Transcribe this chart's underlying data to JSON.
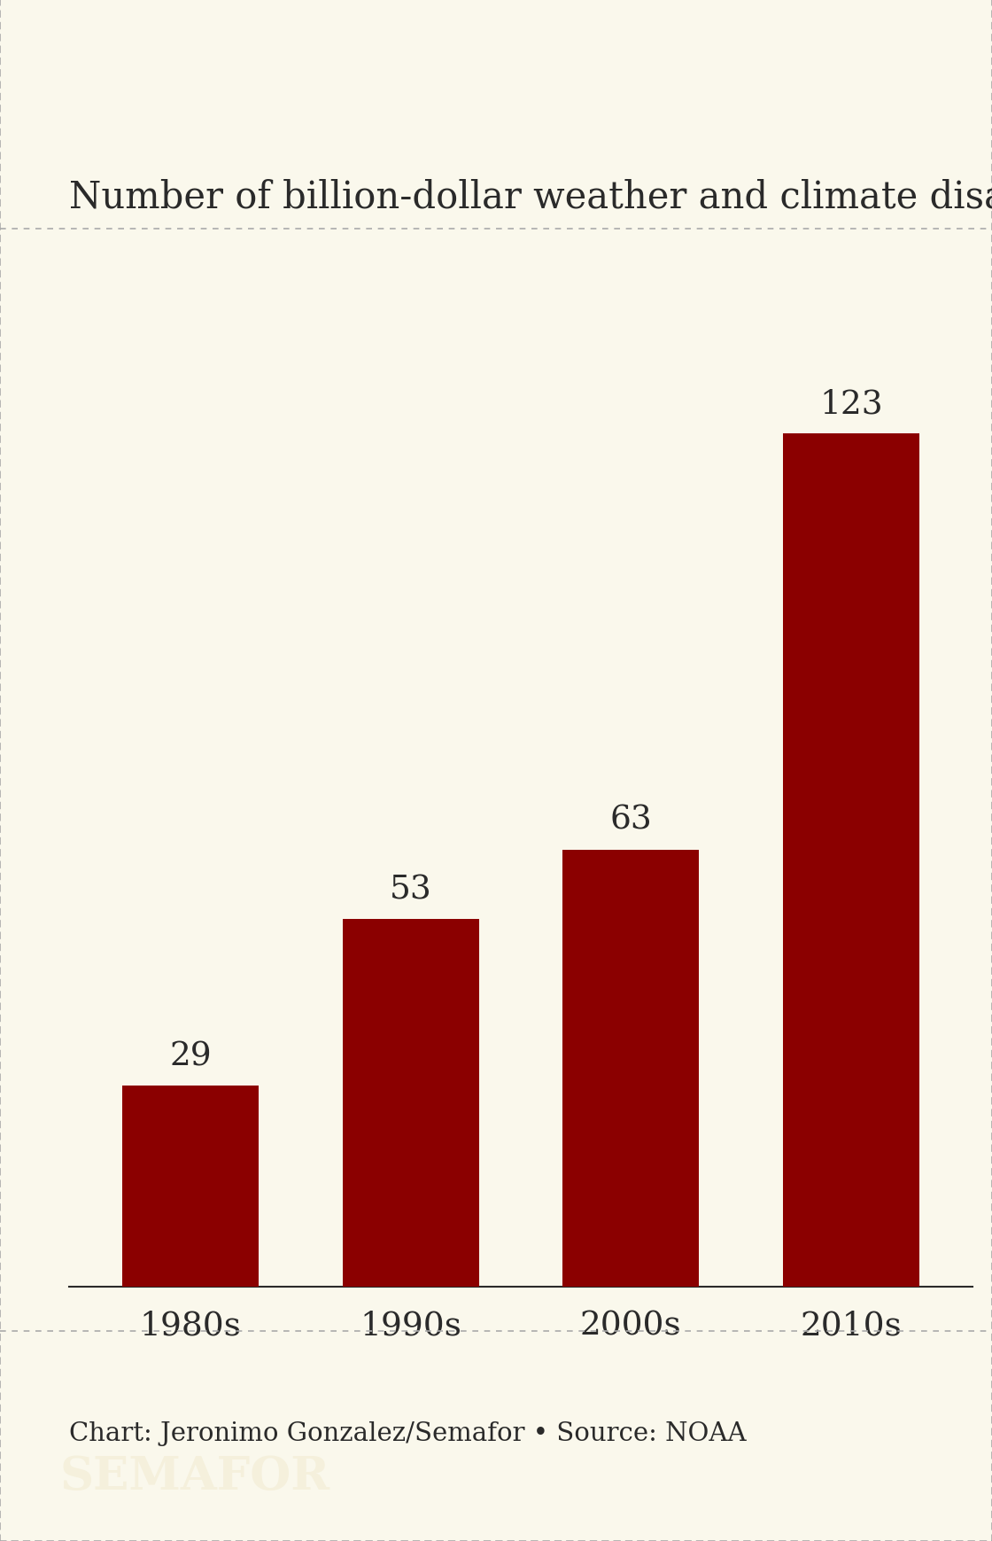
{
  "title": "Number of billion-dollar weather and climate disasters in the US",
  "categories": [
    "1980s",
    "1990s",
    "2000s",
    "2010s"
  ],
  "values": [
    29,
    53,
    63,
    123
  ],
  "bar_color": "#8B0000",
  "background_color": "#FAF8EC",
  "text_color": "#2a2a2a",
  "footer_text": "Chart: Jeronimo Gonzalez/Semafor • Source: NOAA",
  "brand_text": "SEMAFOR",
  "brand_bg": "#000000",
  "brand_text_color": "#f5f0dc",
  "title_fontsize": 30,
  "tick_fontsize": 27,
  "footer_fontsize": 21,
  "brand_fontsize": 38,
  "value_fontsize": 27,
  "ylim": [
    0,
    140
  ],
  "border_color": "#aaaaaa",
  "bar_width": 0.62
}
